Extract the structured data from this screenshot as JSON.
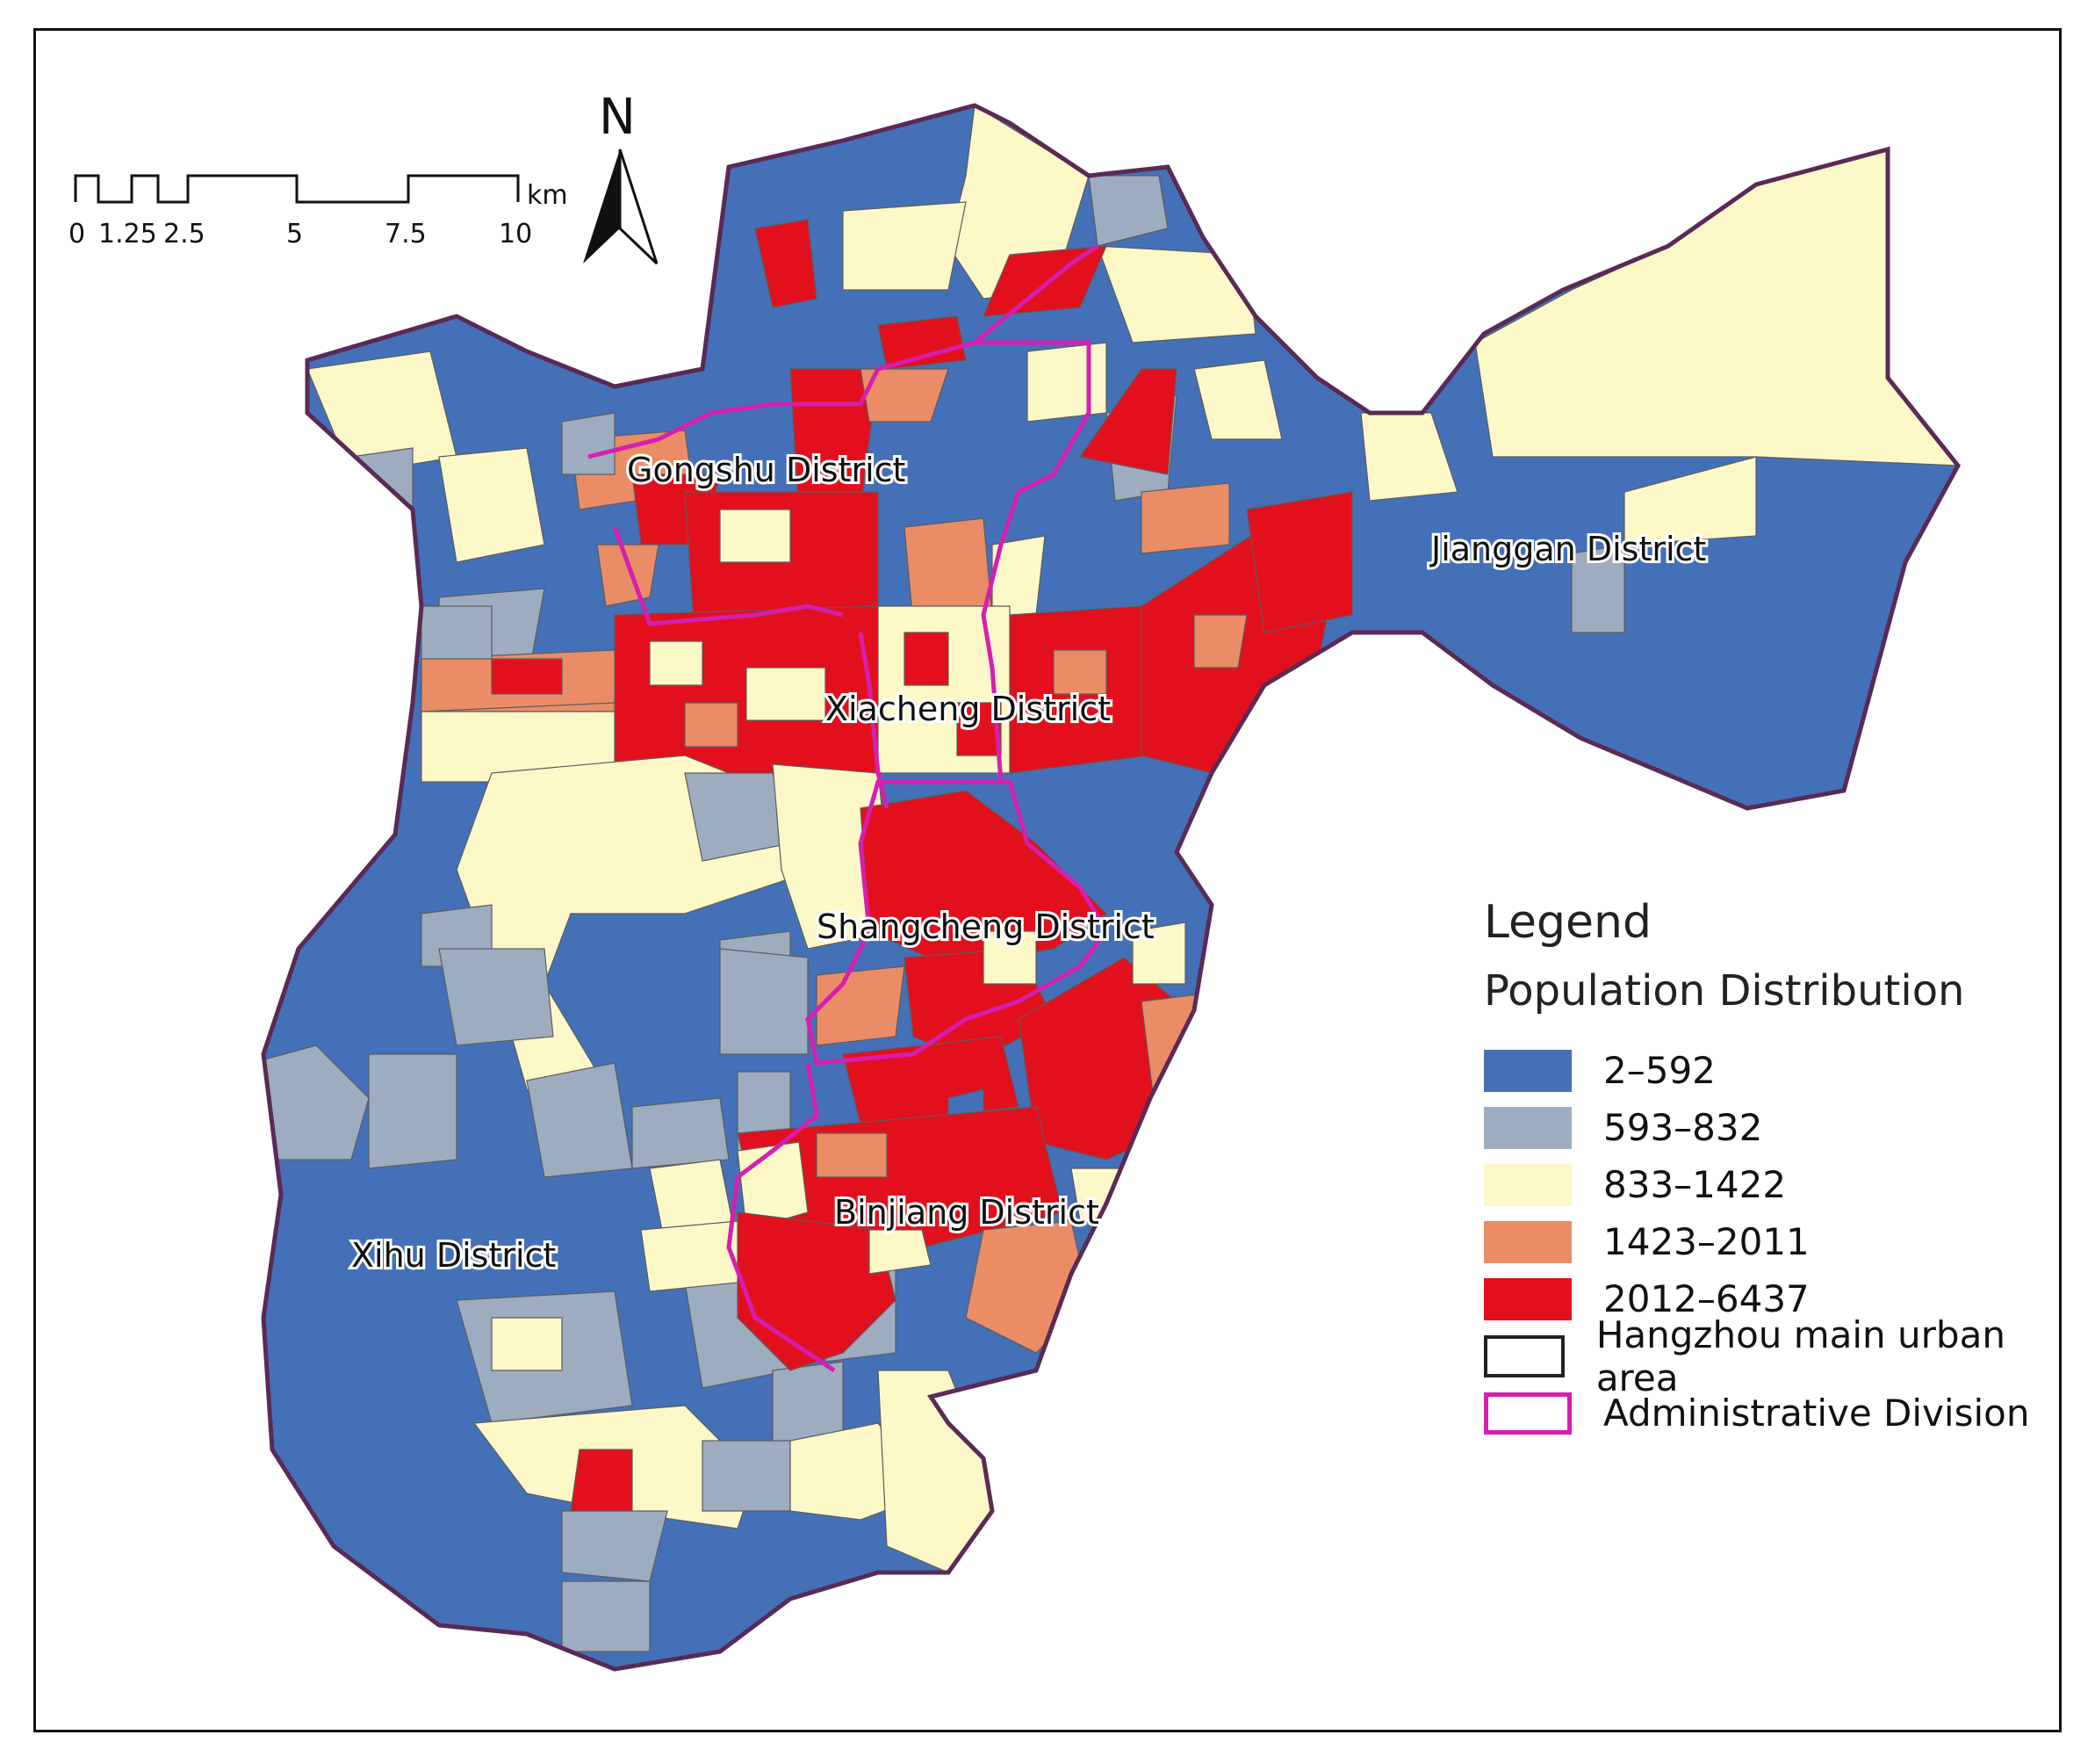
{
  "scale_bar": {
    "ticks": [
      "0",
      "1.25",
      "2.5",
      "5",
      "7.5",
      "10"
    ],
    "unit": "km"
  },
  "north_arrow": {
    "label": "N",
    "icon": "north-arrow-icon"
  },
  "districts": {
    "gongshu": "Gongshu District",
    "xiacheng": "Xiacheng District",
    "jianggan": "Jianggan District",
    "shangcheng": "Shangcheng District",
    "binjiang": "Binjiang District",
    "xihu": "Xihu District"
  },
  "legend": {
    "title": "Legend",
    "subtitle": "Population Distribution",
    "classes": [
      {
        "label": "2–592",
        "color": "#4470b8"
      },
      {
        "label": "593–832",
        "color": "#9eacc0"
      },
      {
        "label": "833–1422",
        "color": "#fdf8c8"
      },
      {
        "label": "1423–2011",
        "color": "#ea8d66"
      },
      {
        "label": "2012–6437",
        "color": "#e2101c"
      }
    ],
    "boundaries": [
      {
        "label": "Hangzhou main urban area",
        "color": "#5a2a55"
      },
      {
        "label": "Administrative Division",
        "color": "#d61fb0"
      }
    ]
  }
}
